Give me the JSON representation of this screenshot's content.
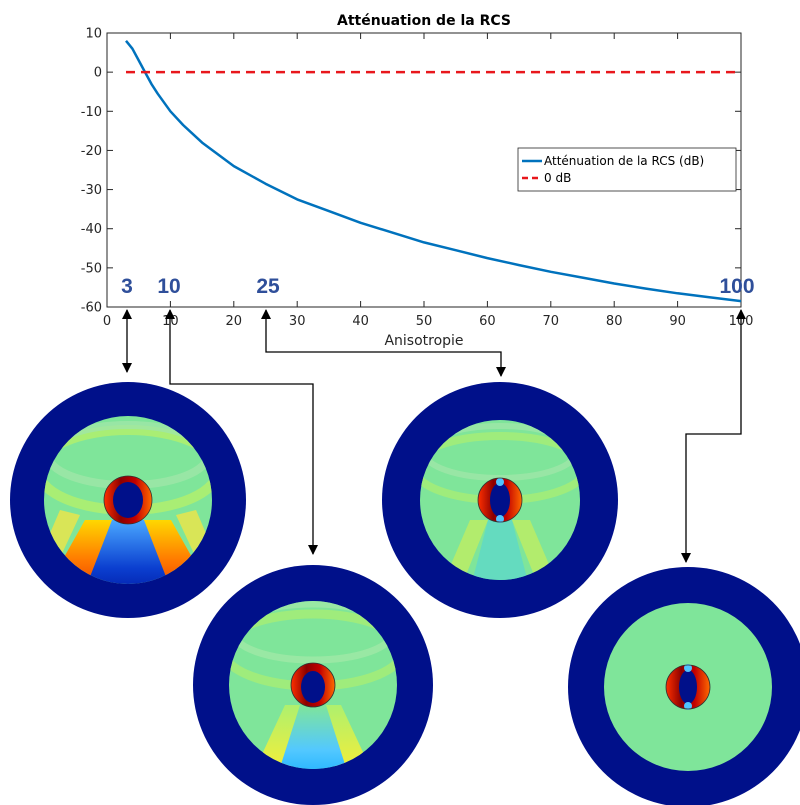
{
  "chart_data": {
    "type": "line",
    "title": "Atténuation de la RCS",
    "xlabel": "Anisotropie",
    "ylabel": "",
    "xlim": [
      0,
      100
    ],
    "ylim": [
      -60,
      10
    ],
    "xticks": [
      "0",
      "10",
      "20",
      "30",
      "40",
      "50",
      "60",
      "70",
      "80",
      "90",
      "100"
    ],
    "yticks": [
      "10",
      "0",
      "-10",
      "-20",
      "-30",
      "-40",
      "-50",
      "-60"
    ],
    "grid": false,
    "legend_position": "right",
    "series": [
      {
        "name": "Atténuation de la RCS (dB)",
        "color": "#0072bd",
        "style": "solid",
        "x": [
          3,
          4,
          5,
          6,
          7,
          8,
          10,
          12,
          15,
          20,
          25,
          30,
          35,
          40,
          45,
          50,
          55,
          60,
          65,
          70,
          75,
          80,
          85,
          90,
          95,
          100
        ],
        "y": [
          8,
          6,
          3,
          0,
          -3,
          -5.5,
          -10,
          -13.5,
          -18,
          -24,
          -28.5,
          -32.5,
          -35.5,
          -38.5,
          -41,
          -43.5,
          -45.5,
          -47.5,
          -49.3,
          -51,
          -52.5,
          -54,
          -55.3,
          -56.5,
          -57.5,
          -58.5
        ]
      },
      {
        "name": "0 dB",
        "color": "#e8171c",
        "style": "dashed",
        "x": [
          3,
          100
        ],
        "y": [
          0,
          0
        ]
      }
    ]
  },
  "markers": [
    {
      "label": "3",
      "x": 3
    },
    {
      "label": "10",
      "x": 10
    },
    {
      "label": "25",
      "x": 25
    },
    {
      "label": "100",
      "x": 100
    }
  ],
  "snapshots": [
    {
      "name": "anisotropy-3-field-map",
      "anisotropy": 3
    },
    {
      "name": "anisotropy-10-field-map",
      "anisotropy": 10
    },
    {
      "name": "anisotropy-25-field-map",
      "anisotropy": 25
    },
    {
      "name": "anisotropy-100-field-map",
      "anisotropy": 100
    }
  ],
  "colors": {
    "dark_ring": "#00108a",
    "background_field": "#7fe58c",
    "marker_text": "#2f4f9a"
  }
}
